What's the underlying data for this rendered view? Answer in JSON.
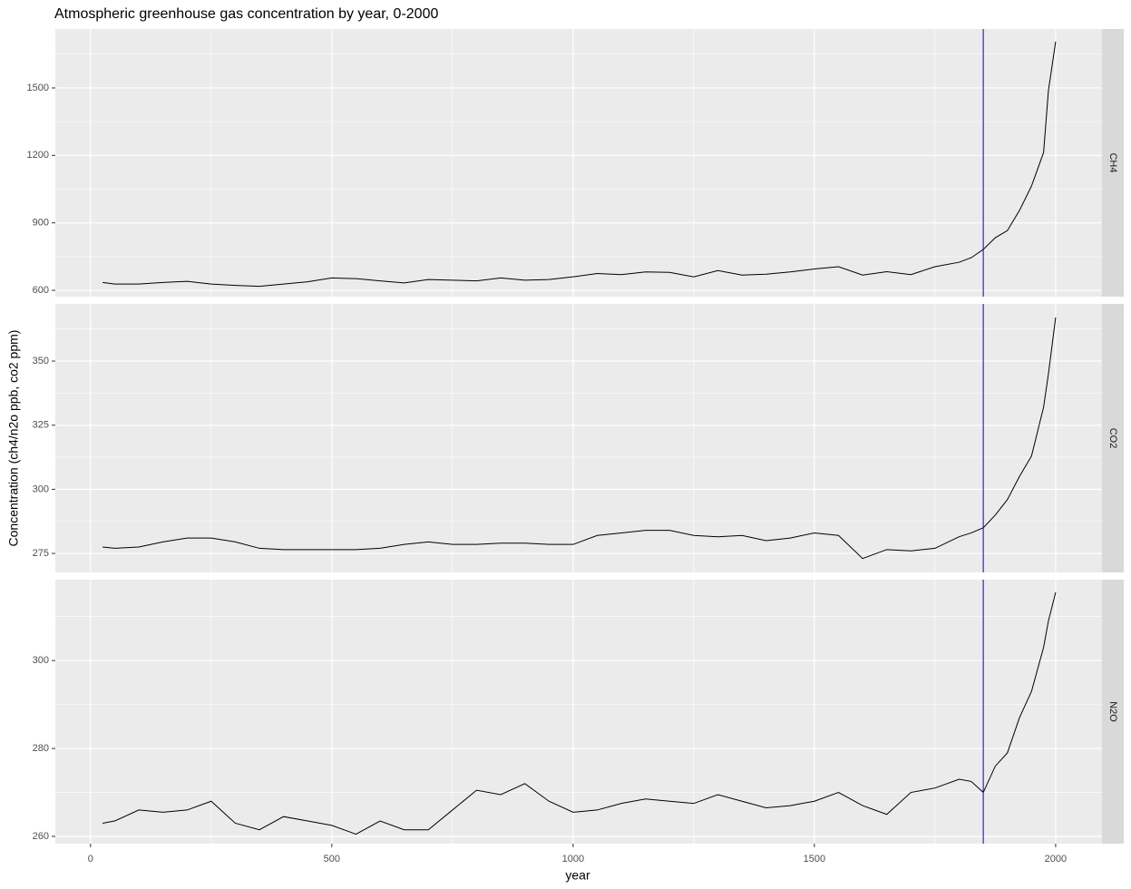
{
  "chart_data": {
    "type": "line",
    "title": "Atmospheric greenhouse gas concentration by year, 0-2000",
    "xlabel": "year",
    "ylabel": "Concentration (ch4/n2o ppb, co2 ppm)",
    "xlim": [
      -73,
      2096
    ],
    "xticks": [
      0,
      500,
      1000,
      1500,
      2000
    ],
    "minor_xticks": [
      250,
      750,
      1250,
      1750
    ],
    "grid": true,
    "line_color": "#000000",
    "vline": {
      "value": 1850,
      "color": "#0000cc"
    },
    "x": [
      25,
      50,
      100,
      150,
      200,
      250,
      300,
      350,
      400,
      450,
      500,
      550,
      600,
      650,
      700,
      750,
      800,
      850,
      900,
      950,
      1000,
      1050,
      1100,
      1150,
      1200,
      1250,
      1300,
      1350,
      1400,
      1450,
      1500,
      1550,
      1600,
      1650,
      1700,
      1750,
      1800,
      1825,
      1850,
      1875,
      1900,
      1925,
      1950,
      1975,
      1985,
      2000
    ],
    "facets": [
      {
        "label": "CH4",
        "ylim": [
          572,
          1762
        ],
        "yticks": [
          600,
          900,
          1200,
          1500
        ],
        "minor_yticks": [
          750,
          1050,
          1350,
          1650
        ],
        "values": [
          635,
          628,
          628,
          635,
          640,
          628,
          622,
          618,
          628,
          638,
          655,
          652,
          642,
          633,
          648,
          645,
          642,
          655,
          645,
          648,
          660,
          675,
          670,
          682,
          680,
          660,
          688,
          668,
          672,
          682,
          695,
          705,
          668,
          683,
          670,
          705,
          725,
          745,
          782,
          834,
          866,
          955,
          1064,
          1213,
          1488,
          1706
        ]
      },
      {
        "label": "CO2",
        "ylim": [
          267.6,
          372.3
        ],
        "yticks": [
          275,
          300,
          325,
          350
        ],
        "minor_yticks": [
          287.5,
          312.5,
          337.5,
          362.5
        ],
        "values": [
          277.5,
          277,
          277.5,
          279.5,
          281,
          281,
          279.5,
          277,
          276.5,
          276.5,
          276.5,
          276.5,
          277,
          278.5,
          279.5,
          278.5,
          278.5,
          279,
          279,
          278.5,
          278.5,
          282,
          283,
          284,
          284,
          282,
          281.5,
          282,
          280,
          281,
          283,
          282,
          273,
          276.5,
          276,
          277,
          281.5,
          283,
          285,
          290,
          296,
          305,
          313,
          332,
          345,
          367
        ]
      },
      {
        "label": "N2O",
        "ylim": [
          258.35,
          318.4
        ],
        "yticks": [
          260,
          280,
          300
        ],
        "minor_yticks": [
          270,
          290,
          310
        ],
        "values": [
          263,
          263.5,
          266,
          265.5,
          266,
          268,
          263,
          261.5,
          264.5,
          263.5,
          262.5,
          260.5,
          263.5,
          261.5,
          261.5,
          266,
          270.5,
          269.5,
          272,
          268,
          265.5,
          266,
          267.5,
          268.5,
          268,
          267.5,
          269.5,
          268,
          266.5,
          267,
          268,
          270,
          267,
          265,
          270,
          271,
          273,
          272.5,
          270,
          276,
          279,
          287,
          293,
          303,
          309,
          315.5
        ]
      }
    ]
  }
}
